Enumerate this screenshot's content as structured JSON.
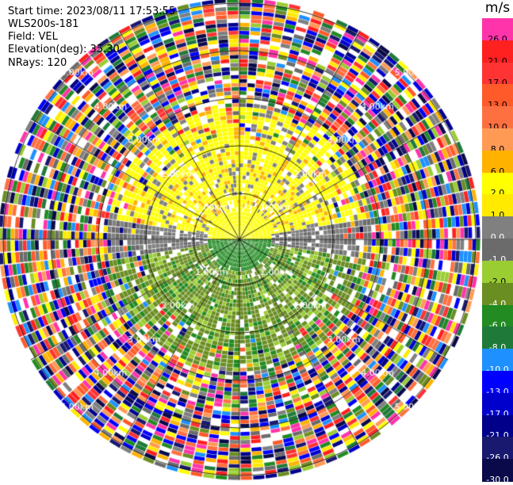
{
  "header": {
    "start_time": "Start time: 2023/08/11 17:53:55",
    "instrument": "WLS200s-181",
    "field": "Field: VEL",
    "elevation": "Elevation(deg): 35.30",
    "nrays": "NRays: 120"
  },
  "plot": {
    "type": "ppi-scan",
    "ring_labels": [
      "1.00km",
      "2.00km",
      "3.00km",
      "4.00km",
      "5.00km"
    ],
    "spoke_count": 12,
    "background": "#ffffff",
    "ring_color": "#000000"
  },
  "colorbar": {
    "unit": "m/s",
    "bins": [
      {
        "label": "26.0",
        "color": "#ff33aa"
      },
      {
        "label": "21.0",
        "color": "#ff2020"
      },
      {
        "label": "17.0",
        "color": "#ff3333"
      },
      {
        "label": "13.0",
        "color": "#ff5a2a"
      },
      {
        "label": "10.0",
        "color": "#ff7040"
      },
      {
        "label": "8.0",
        "color": "#ff9a55"
      },
      {
        "label": "6.0",
        "color": "#ffb300"
      },
      {
        "label": "2.0",
        "color": "#ffff00"
      },
      {
        "label": "1.0",
        "color": "#ffea00"
      },
      {
        "label": "0.0",
        "color": "#808080"
      },
      {
        "label": "-1.0",
        "color": "#6b6b6b"
      },
      {
        "label": "-2.0",
        "color": "#9acd32"
      },
      {
        "label": "-4.0",
        "color": "#6b8e23"
      },
      {
        "label": "-6.0",
        "color": "#228b22"
      },
      {
        "label": "-8.0",
        "color": "#1f7a3a"
      },
      {
        "label": "-10.0",
        "color": "#1e90ff"
      },
      {
        "label": "-13.0",
        "color": "#0000ff"
      },
      {
        "label": "-17.0",
        "color": "#0000cd"
      },
      {
        "label": "-21.0",
        "color": "#00008b"
      },
      {
        "label": "-26.0",
        "color": "#191970"
      },
      {
        "label": "-30.0",
        "color": "#0a0a4a"
      }
    ]
  }
}
